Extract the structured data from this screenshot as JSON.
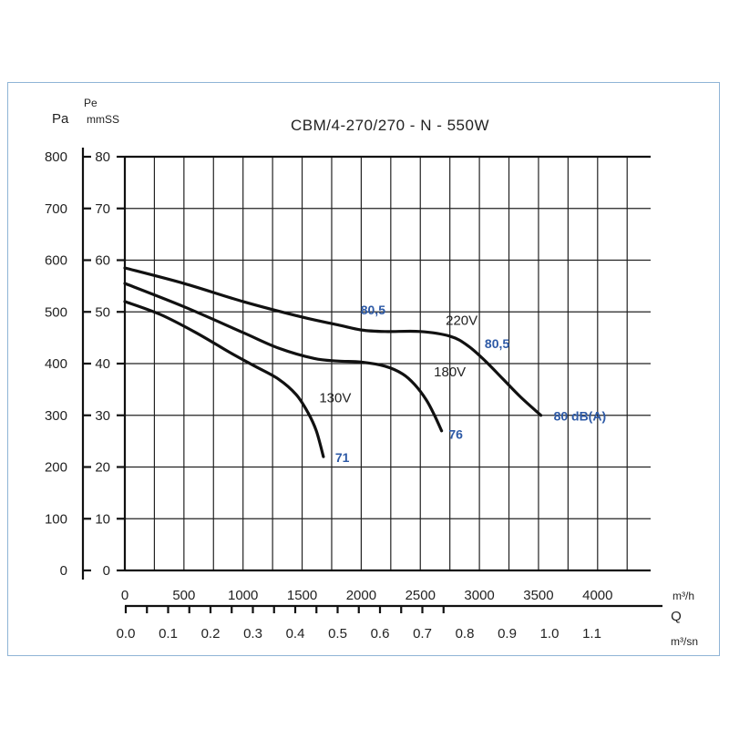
{
  "chart_data": {
    "type": "line",
    "title": "CBM/4-270/270 - N - 550W",
    "y_left_units": [
      "Pa"
    ],
    "y_right_units": [
      "Pe",
      "mmSS"
    ],
    "x_units_top": "m³/h",
    "x_symbol": "Q",
    "x_units_bottom": "m³/sn",
    "xlim": [
      0,
      4250
    ],
    "ylim": [
      0,
      80
    ],
    "grid": true,
    "y_ticks_pa": [
      "800",
      "700",
      "600",
      "500",
      "400",
      "300",
      "200",
      "100",
      "0"
    ],
    "y_ticks_mmss": [
      "80",
      "70",
      "60",
      "50",
      "40",
      "30",
      "20",
      "10",
      "0"
    ],
    "x_ticks_m3h": [
      "0",
      "500",
      "1000",
      "1500",
      "2000",
      "2500",
      "3000",
      "3500",
      "4000"
    ],
    "x_ticks_m3sn": [
      "0.0",
      "0.1",
      "0.2",
      "0.3",
      "0.4",
      "0.5",
      "0.6",
      "0.7",
      "0.8",
      "0.9",
      "1.0",
      "1.1"
    ],
    "series": [
      {
        "name": "220V",
        "x": [
          0,
          500,
          1000,
          1500,
          1800,
          2000,
          2200,
          2500,
          2750,
          2900,
          3050,
          3200,
          3350,
          3520
        ],
        "y": [
          58.5,
          55.5,
          52,
          49,
          47.5,
          46.5,
          46.2,
          46.2,
          45.3,
          43.5,
          40.5,
          37,
          33.5,
          30
        ]
      },
      {
        "name": "180V",
        "x": [
          0,
          500,
          1000,
          1300,
          1600,
          1800,
          2000,
          2200,
          2350,
          2450,
          2550,
          2620,
          2680
        ],
        "y": [
          55.5,
          51,
          46,
          43,
          41,
          40.5,
          40.3,
          39.5,
          38,
          36,
          33,
          30,
          27
        ]
      },
      {
        "name": "130V",
        "x": [
          0,
          300,
          600,
          900,
          1100,
          1300,
          1450,
          1550,
          1620,
          1680
        ],
        "y": [
          52,
          49.5,
          46,
          42,
          39.5,
          37,
          34,
          30.5,
          27,
          22
        ]
      }
    ],
    "annotations": [
      {
        "text": "80,5",
        "x": 2100,
        "y": 49.5,
        "color": "#2e5aa6"
      },
      {
        "text": "220V",
        "x": 2850,
        "y": 47.5,
        "color": "#222222"
      },
      {
        "text": "80,5",
        "x": 3150,
        "y": 43,
        "color": "#2e5aa6"
      },
      {
        "text": "80 dB(A)",
        "x": 3850,
        "y": 29,
        "color": "#2e5aa6"
      },
      {
        "text": "180V",
        "x": 2750,
        "y": 37.5,
        "color": "#222222"
      },
      {
        "text": "76",
        "x": 2800,
        "y": 25.5,
        "color": "#2e5aa6"
      },
      {
        "text": "130V",
        "x": 1780,
        "y": 32.5,
        "color": "#222222"
      },
      {
        "text": "71",
        "x": 1840,
        "y": 21,
        "color": "#2e5aa6"
      }
    ]
  }
}
